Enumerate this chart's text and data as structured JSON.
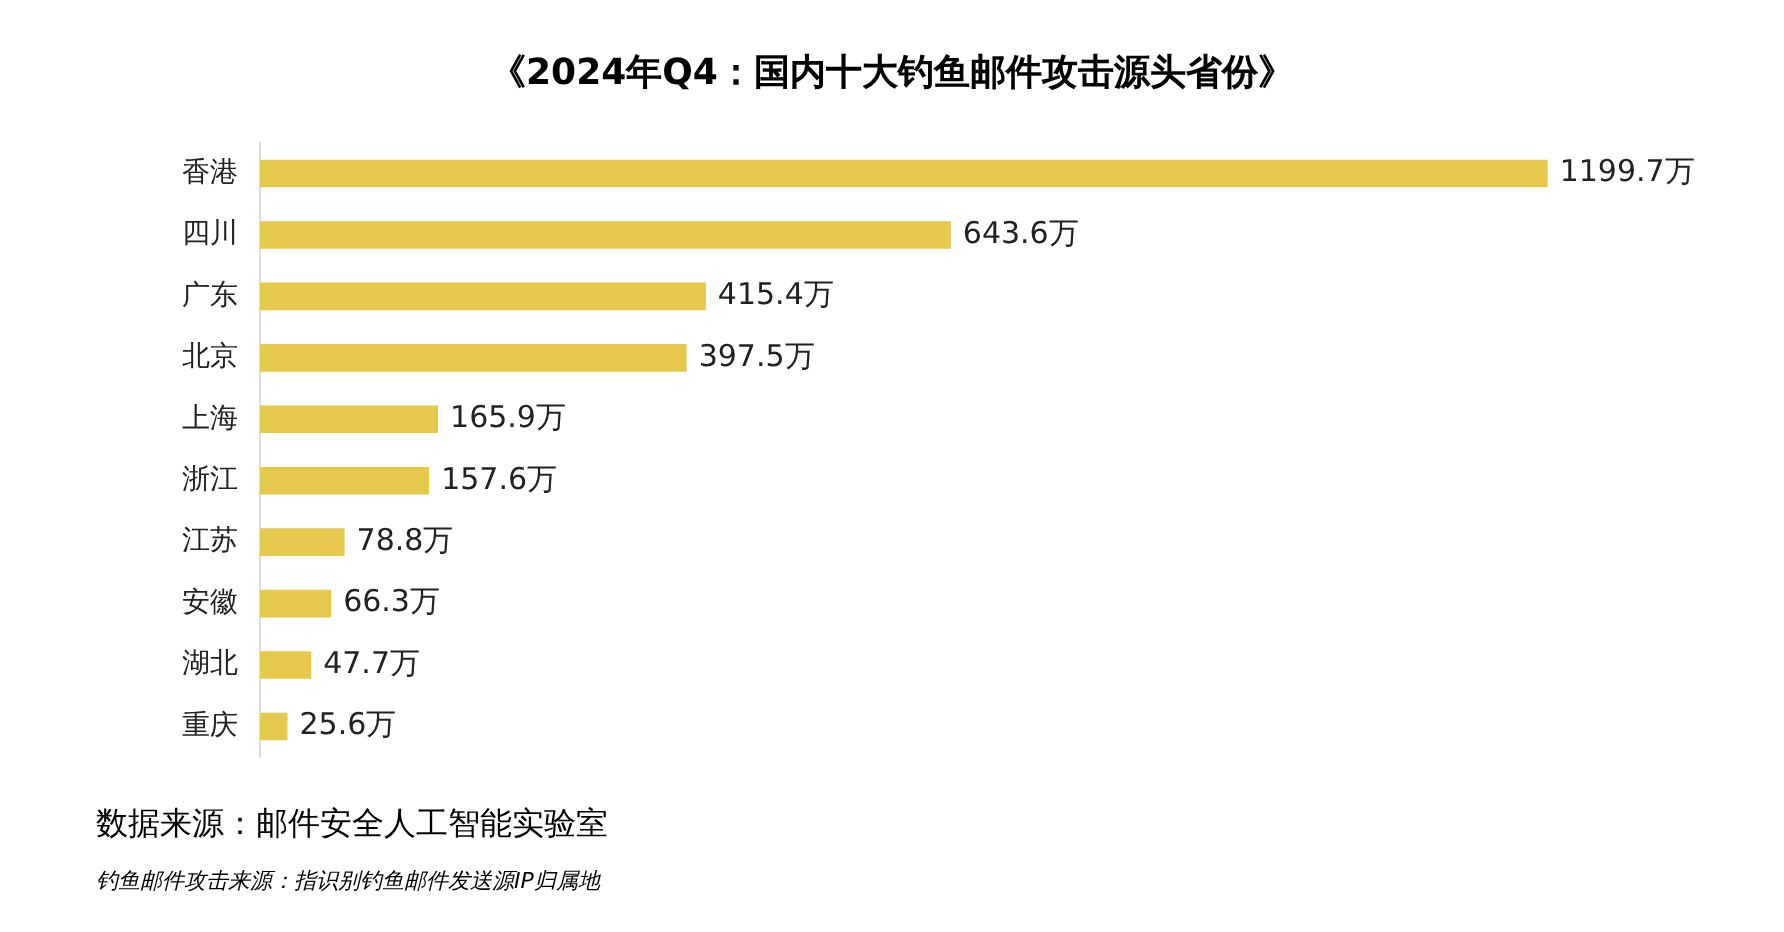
{
  "chart_data": {
    "type": "bar",
    "orientation": "horizontal",
    "title": "《2024年Q4：国内十大钓鱼邮件攻击源头省份》",
    "categories": [
      "香港",
      "四川",
      "广东",
      "北京",
      "上海",
      "浙江",
      "江苏",
      "安徽",
      "湖北",
      "重庆"
    ],
    "values": [
      1199.7,
      643.6,
      415.4,
      397.5,
      165.9,
      157.6,
      78.8,
      66.3,
      47.7,
      25.6
    ],
    "value_labels": [
      "1199.7万",
      "643.6万",
      "415.4万",
      "397.5万",
      "165.9万",
      "157.6万",
      "78.8万",
      "66.3万",
      "47.7万",
      "25.6万"
    ],
    "color": "#e6c84c",
    "annotations": [
      "数据来源：邮件安全人工智能实验室",
      "钓鱼邮件攻击来源：指识别钓鱼邮件发送源IP归属地"
    ]
  }
}
